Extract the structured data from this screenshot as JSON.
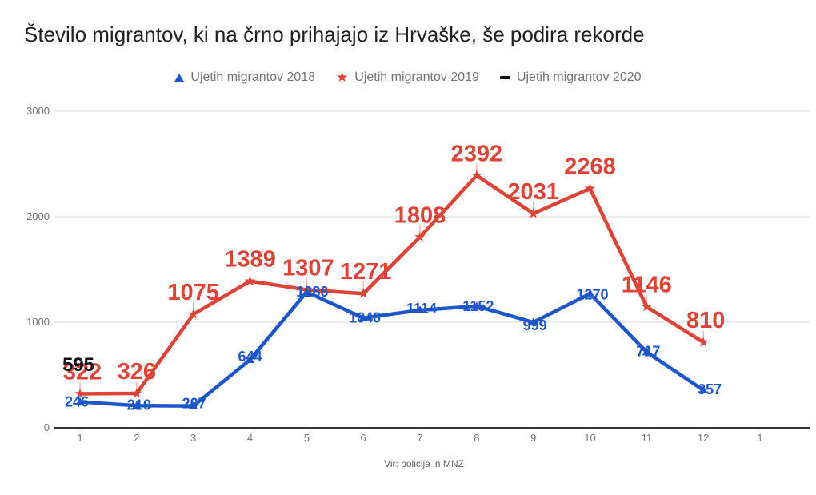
{
  "header": {
    "title": "Število migrantov, ki na črno prihajajo iz Hrvaške, še podira rekorde"
  },
  "legend": [
    {
      "label": "Ujetih migrantov 2018",
      "marker": "triangle-icon",
      "color": "#1d56c8"
    },
    {
      "label": "Ujetih migrantov 2019",
      "marker": "star-icon",
      "color": "#dc4437"
    },
    {
      "label": "Ujetih migrantov 2020",
      "marker": "dash-icon",
      "color": "#111111"
    }
  ],
  "source_note": "Vir: policija in MNZ",
  "colors": {
    "series_2018": "#1d56c8",
    "series_2019": "#dc4437",
    "series_2020": "#111111",
    "gridline": "#d9d9d9",
    "axis": "#333333",
    "tick_text": "#757575",
    "title_text": "#212121"
  },
  "chart_data": {
    "type": "line",
    "title": "Število migrantov, ki na črno prihajajo iz Hrvaške, še podira rekorde",
    "xlabel": "",
    "ylabel": "",
    "x": [
      1,
      2,
      3,
      4,
      5,
      6,
      7,
      8,
      9,
      10,
      11,
      12
    ],
    "x_tick_labels": [
      "1",
      "2",
      "3",
      "4",
      "5",
      "6",
      "7",
      "8",
      "9",
      "10",
      "11",
      "12",
      "1"
    ],
    "y_ticks": [
      0,
      1000,
      2000,
      3000
    ],
    "ylim": [
      0,
      3000
    ],
    "grid": true,
    "legend_position": "top",
    "annotations_shown": true,
    "series": [
      {
        "name": "Ujetih migrantov 2018",
        "color": "#1d56c8",
        "marker": "triangle",
        "values": [
          246,
          210,
          207,
          644,
          1286,
          1040,
          1114,
          1152,
          999,
          1270,
          717,
          357
        ]
      },
      {
        "name": "Ujetih migrantov 2019",
        "color": "#dc4437",
        "marker": "star",
        "values": [
          322,
          326,
          1075,
          1389,
          1307,
          1271,
          1808,
          2392,
          2031,
          2268,
          1146,
          810
        ]
      },
      {
        "name": "Ujetih migrantov 2020",
        "color": "#111111",
        "marker": "dash",
        "values": [
          595
        ]
      }
    ],
    "source": "Vir: policija in MNZ"
  }
}
